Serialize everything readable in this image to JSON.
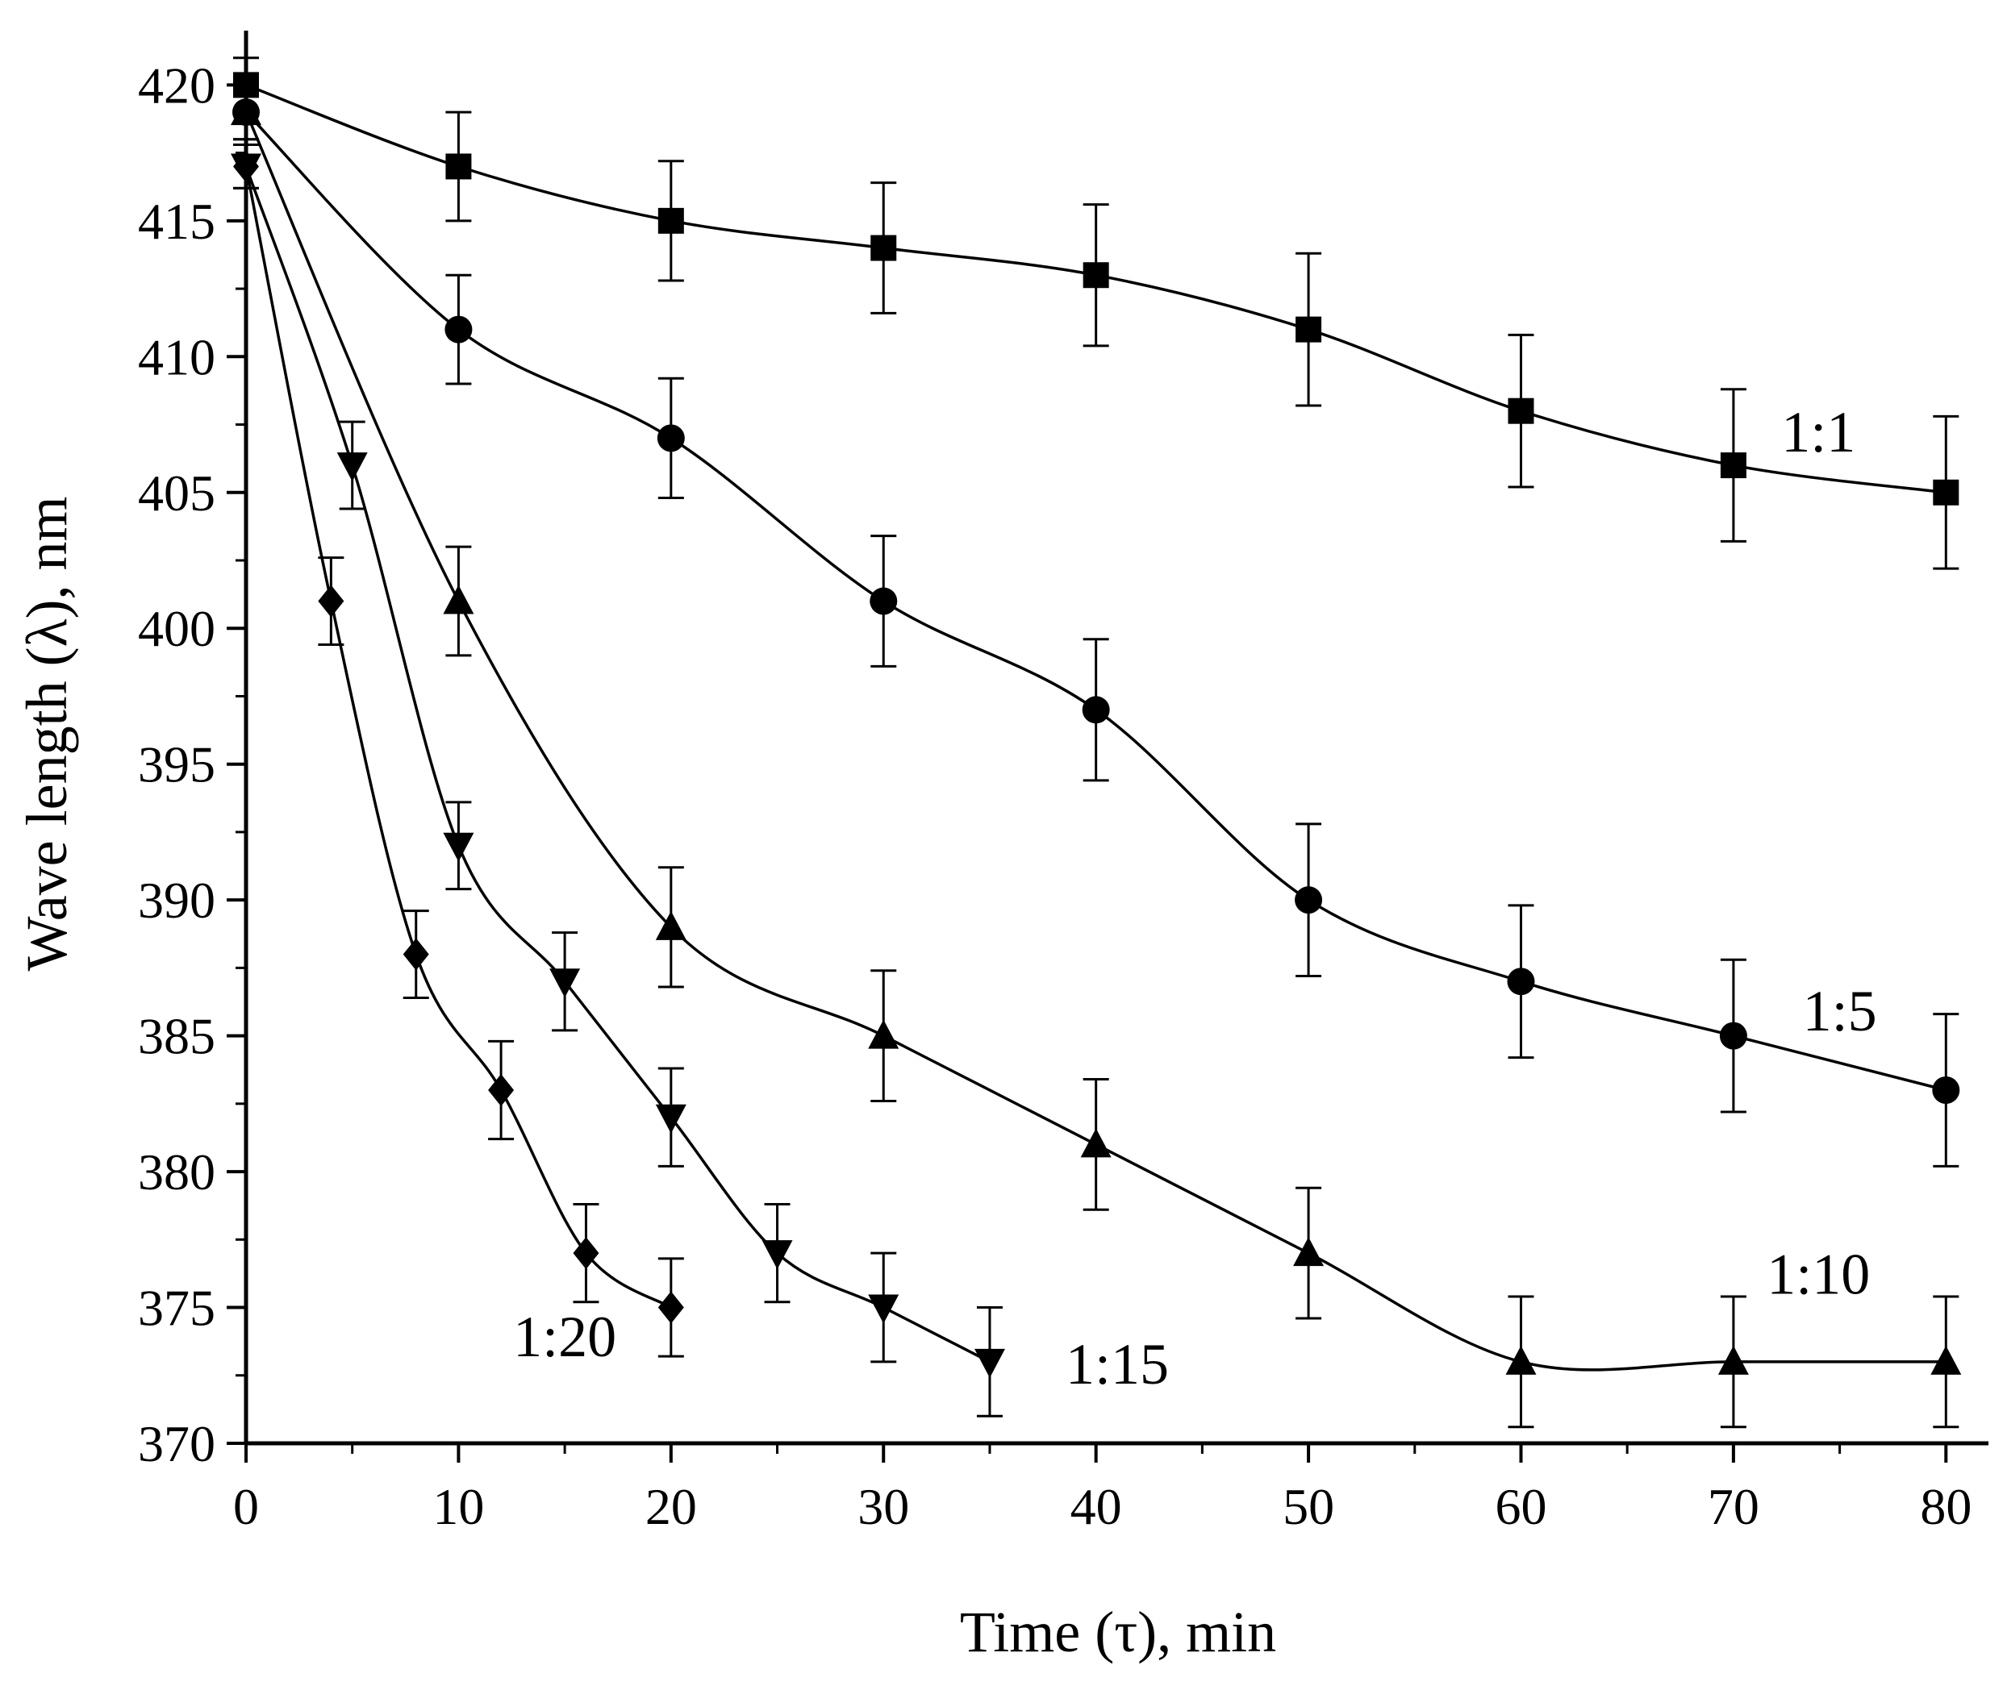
{
  "chart_data": {
    "type": "line",
    "title": "",
    "xlabel": "Time (τ), min",
    "ylabel": "Wave length (λ), nm",
    "xlim": [
      0,
      82
    ],
    "ylim": [
      370,
      422
    ],
    "xticks": [
      0,
      10,
      20,
      30,
      40,
      50,
      60,
      70,
      80
    ],
    "yticks": [
      370,
      375,
      380,
      385,
      390,
      395,
      400,
      405,
      410,
      415,
      420
    ],
    "grid": false,
    "legend": "none",
    "series": [
      {
        "name": "1:1",
        "marker": "square",
        "x": [
          0,
          10,
          20,
          30,
          40,
          50,
          60,
          70,
          80
        ],
        "values": [
          420,
          417,
          415,
          414,
          413,
          411,
          408,
          406,
          405
        ],
        "error": [
          1.0,
          2.0,
          2.2,
          2.4,
          2.6,
          2.8,
          2.8,
          2.8,
          2.8
        ]
      },
      {
        "name": "1:5",
        "marker": "circle",
        "x": [
          0,
          10,
          20,
          30,
          40,
          50,
          60,
          70,
          80
        ],
        "values": [
          419,
          411,
          407,
          401,
          397,
          390,
          387,
          385,
          383
        ],
        "error": [
          1.0,
          2.0,
          2.2,
          2.4,
          2.6,
          2.8,
          2.8,
          2.8,
          2.8
        ]
      },
      {
        "name": "1:10",
        "marker": "triangle-up",
        "x": [
          0,
          10,
          20,
          30,
          40,
          50,
          60,
          70,
          80
        ],
        "values": [
          419,
          401,
          389,
          385,
          381,
          377,
          373,
          373,
          373
        ],
        "error": [
          1.0,
          2.0,
          2.2,
          2.4,
          2.4,
          2.4,
          2.4,
          2.4,
          2.4
        ]
      },
      {
        "name": "1:15",
        "marker": "triangle-down",
        "x": [
          0,
          5,
          10,
          15,
          20,
          25,
          30,
          35
        ],
        "values": [
          417,
          406,
          392,
          387,
          382,
          377,
          375,
          373
        ],
        "error": [
          0.8,
          1.6,
          1.6,
          1.8,
          1.8,
          1.8,
          2.0,
          2.0
        ]
      },
      {
        "name": "1:20",
        "marker": "diamond",
        "x": [
          0,
          4,
          8,
          12,
          16,
          20
        ],
        "values": [
          417,
          401,
          388,
          383,
          377,
          375
        ],
        "error": [
          0.8,
          1.6,
          1.6,
          1.8,
          1.8,
          1.8
        ]
      }
    ],
    "annotations": [
      {
        "text": "1:1",
        "series": "1:1"
      },
      {
        "text": "1:5",
        "series": "1:5"
      },
      {
        "text": "1:10",
        "series": "1:10"
      },
      {
        "text": "1:15",
        "series": "1:15"
      },
      {
        "text": "1:20",
        "series": "1:20"
      }
    ]
  }
}
